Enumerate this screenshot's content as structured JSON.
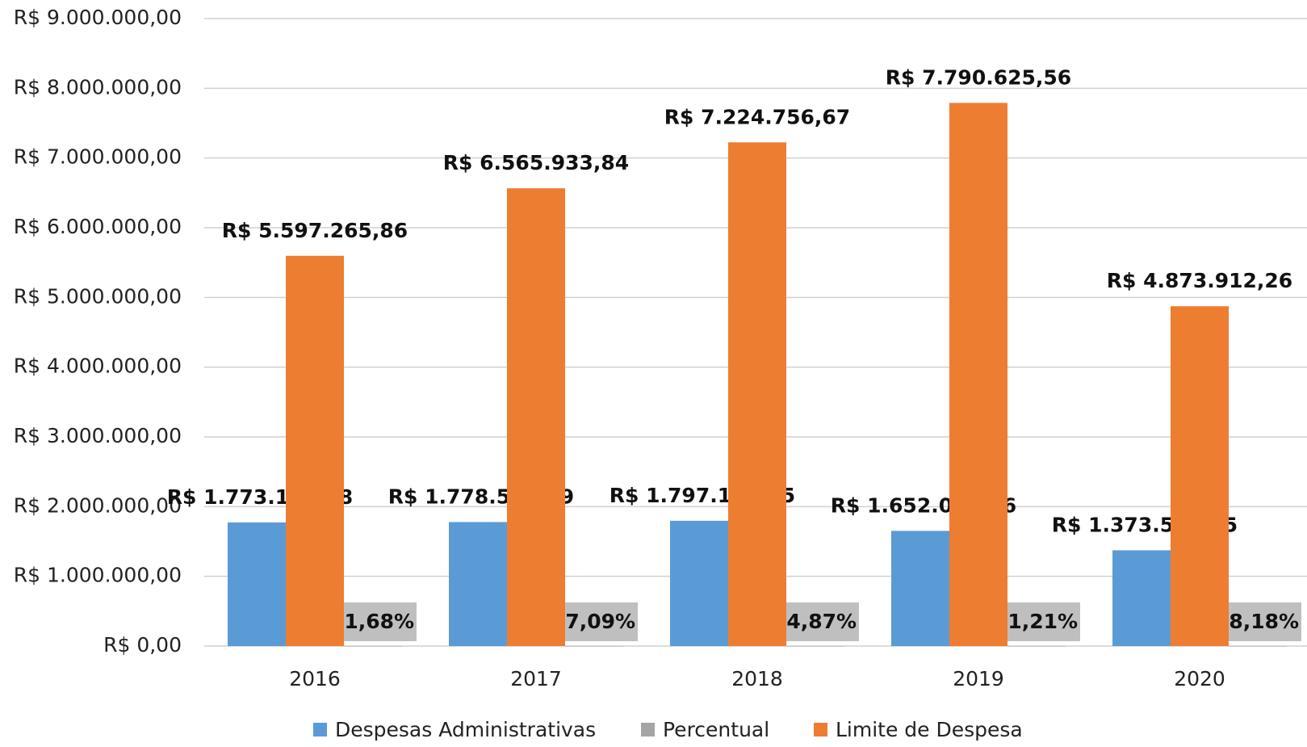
{
  "chart_data": {
    "type": "bar",
    "categories": [
      "2016",
      "2017",
      "2018",
      "2019",
      "2020"
    ],
    "series": [
      {
        "name": "Despesas Administrativas",
        "color": "#5b9bd5",
        "values": [
          1773117.28,
          1778513.39,
          1797154.75,
          1652013.36,
          1373568.95
        ],
        "value_labels": [
          "R$ 1.773.117,28",
          "R$ 1.778.513,39",
          "R$ 1.797.154,75",
          "R$ 1.652.013,36",
          "R$ 1.373.568,95"
        ]
      },
      {
        "name": "Percentual",
        "color": "#a5a5a5",
        "values": [
          31.68,
          27.09,
          24.87,
          21.21,
          28.18
        ],
        "value_labels": [
          "31,68%",
          "27,09%",
          "24,87%",
          "21,21%",
          "28,18%"
        ]
      },
      {
        "name": "Limite de Despesa",
        "color": "#ed7d31",
        "values": [
          5597265.86,
          6565933.84,
          7224756.67,
          7790625.56,
          4873912.26
        ],
        "value_labels": [
          "R$ 5.597.265,86",
          "R$ 6.565.933,84",
          "R$ 7.224.756,67",
          "R$ 7.790.625,56",
          "R$ 4.873.912,26"
        ]
      }
    ],
    "ylim": [
      0,
      9000000
    ],
    "yticks": [
      {
        "value": 0,
        "label": "R$ 0,00"
      },
      {
        "value": 1000000,
        "label": "R$ 1.000.000,00"
      },
      {
        "value": 2000000,
        "label": "R$ 2.000.000,00"
      },
      {
        "value": 3000000,
        "label": "R$ 3.000.000,00"
      },
      {
        "value": 4000000,
        "label": "R$ 4.000.000,00"
      },
      {
        "value": 5000000,
        "label": "R$ 5.000.000,00"
      },
      {
        "value": 6000000,
        "label": "R$ 6.000.000,00"
      },
      {
        "value": 7000000,
        "label": "R$ 7.000.000,00"
      },
      {
        "value": 8000000,
        "label": "R$ 8.000.000,00"
      },
      {
        "value": 9000000,
        "label": "R$ 9.000.000,00"
      }
    ],
    "grid": true,
    "legend": "bottom"
  }
}
